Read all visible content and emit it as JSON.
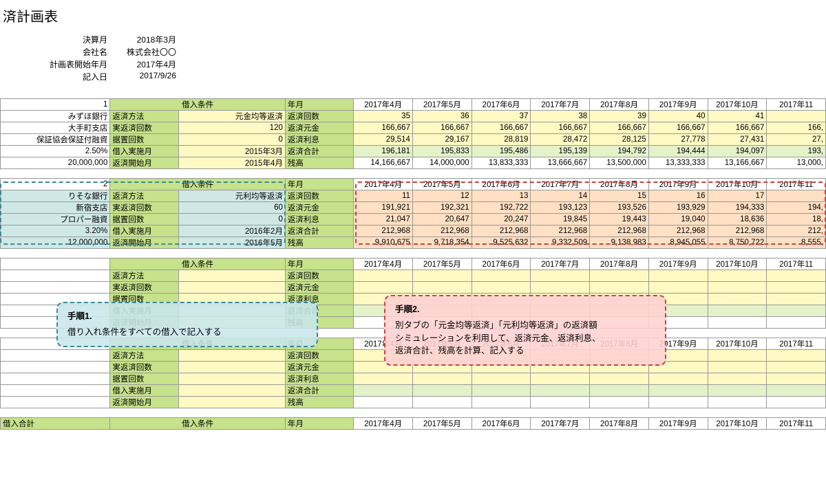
{
  "title": "済計画表",
  "meta": {
    "labels": {
      "fy": "決算月",
      "company": "会社名",
      "start": "計画表開始年月",
      "entry": "記入日"
    },
    "values": {
      "fy": "2018年3月",
      "company": "株式会社〇〇",
      "start": "2017年4月",
      "entry": "2017/9/26"
    }
  },
  "col_labels": {
    "loan_cond": "借入条件",
    "ym": "年月"
  },
  "months": [
    "2017年4月",
    "2017年5月",
    "2017年6月",
    "2017年7月",
    "2017年8月",
    "2017年9月",
    "2017年10月",
    "2017年11"
  ],
  "row_labels": {
    "method": "返済方法",
    "actual_cnt": "実返済回数",
    "defer_cnt": "据置回数",
    "loan_month": "借入実施月",
    "start_month": "返済開始月",
    "r_count": "返済回数",
    "r_principal": "返済元金",
    "r_interest": "返済利息",
    "r_total": "返済合計",
    "r_balance": "残高"
  },
  "loan1": {
    "index": "1",
    "left": [
      "みずほ銀行",
      "大手町支店",
      "保証協会保証付融資",
      "2.50%",
      "20,000,000"
    ],
    "cond": [
      "元金均等返済",
      "120",
      "0",
      "2015年3月",
      "2015年4月"
    ],
    "data": {
      "count": [
        "35",
        "36",
        "37",
        "38",
        "39",
        "40",
        "41",
        ""
      ],
      "principal": [
        "166,667",
        "166,667",
        "166,667",
        "166,667",
        "166,667",
        "166,667",
        "166,667",
        "166,"
      ],
      "interest": [
        "29,514",
        "29,167",
        "28,819",
        "28,472",
        "28,125",
        "27,778",
        "27,431",
        "27,"
      ],
      "total": [
        "196,181",
        "195,833",
        "195,486",
        "195,139",
        "194,792",
        "194,444",
        "194,097",
        "193,"
      ],
      "balance": [
        "14,166,667",
        "14,000,000",
        "13,833,333",
        "13,666,667",
        "13,500,000",
        "13,333,333",
        "13,166,667",
        "13,000,"
      ]
    }
  },
  "loan2": {
    "index": "2",
    "left": [
      "りそな銀行",
      "新宿支店",
      "プロパー融資",
      "3.20%",
      "12,000,000"
    ],
    "cond": [
      "元利均等返済",
      "60",
      "0",
      "2016年2月",
      "2016年5月"
    ],
    "data": {
      "count": [
        "11",
        "12",
        "13",
        "14",
        "15",
        "16",
        "17",
        ""
      ],
      "principal": [
        "191,921",
        "192,321",
        "192,722",
        "193,123",
        "193,526",
        "193,929",
        "194,333",
        "194,"
      ],
      "interest": [
        "21,047",
        "20,647",
        "20,247",
        "19,845",
        "19,443",
        "19,040",
        "18,636",
        "18,"
      ],
      "total": [
        "212,968",
        "212,968",
        "212,968",
        "212,968",
        "212,968",
        "212,968",
        "212,968",
        "212,"
      ],
      "balance": [
        "9,910,675",
        "9,718,354",
        "9,525,632",
        "9,332,509",
        "9,138,983",
        "8,945,055",
        "8,750,722",
        "8,555,"
      ]
    }
  },
  "loan_total_label": "借入合計",
  "callout1": {
    "hd": "手順1.",
    "body": "借り入れ条件をすべての借入で記入する"
  },
  "callout2": {
    "hd": "手順2.",
    "l1": "別タブの「元金均等返済」「元利均等返済」の返済額",
    "l2": "シミュレーションを利用して、返済元金、返済利息、",
    "l3": "返済合計、残高を計算、記入する"
  },
  "style": {
    "green": "#c6e28b",
    "yellow": "#fff9c4",
    "blue": "#cfe8e6",
    "orange": "#ffe0c4"
  }
}
